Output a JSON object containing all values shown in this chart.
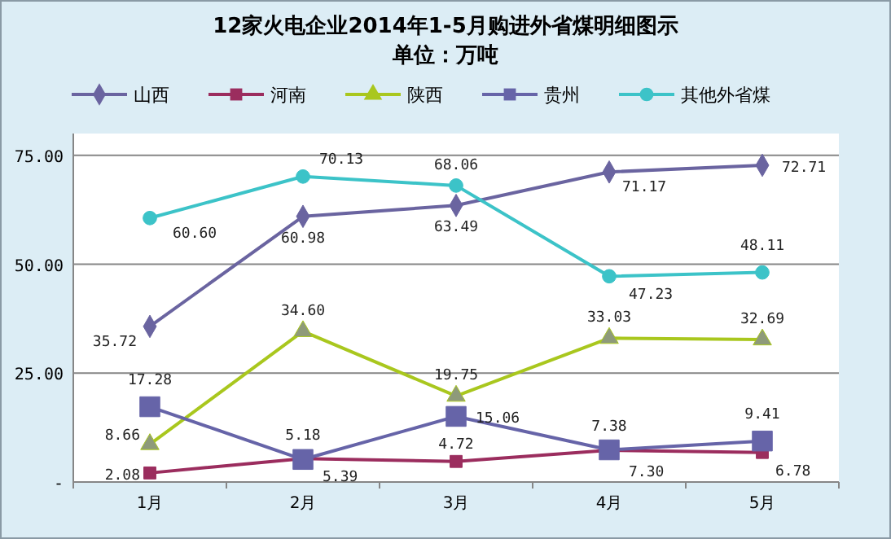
{
  "chart_data": {
    "type": "line",
    "title": "12家火电企业2014年1-5月购进外省煤明细图示",
    "subtitle": "单位：万吨",
    "categories": [
      "1月",
      "2月",
      "3月",
      "4月",
      "5月"
    ],
    "series": [
      {
        "name": "山西",
        "color": "#6a64a0",
        "marker": "diamond",
        "values": [
          35.72,
          60.98,
          63.49,
          71.17,
          72.71
        ],
        "value_labels": [
          "35.72",
          "60.98",
          "63.49",
          "71.17",
          "72.71"
        ]
      },
      {
        "name": "河南",
        "color": "#9b2d5e",
        "marker": "square",
        "values": [
          2.08,
          5.39,
          4.72,
          7.3,
          6.78
        ],
        "value_labels": [
          "2.08",
          "5.39",
          "4.72",
          "7.30",
          "6.78"
        ]
      },
      {
        "name": "陕西",
        "color": "#a9c71e",
        "marker": "triangle",
        "values": [
          8.66,
          34.6,
          19.75,
          33.03,
          32.69
        ],
        "value_labels": [
          "8.66",
          "34.60",
          "19.75",
          "33.03",
          "32.69"
        ]
      },
      {
        "name": "贵州",
        "color": "#6664a8",
        "marker": "square",
        "values": [
          17.28,
          5.18,
          15.06,
          7.38,
          9.41
        ],
        "value_labels": [
          "17.28",
          "5.18",
          "15.06",
          "7.38",
          "9.41"
        ]
      },
      {
        "name": "其他外省煤",
        "color": "#3cc3c8",
        "marker": "circle",
        "values": [
          60.6,
          70.13,
          68.06,
          47.23,
          48.11
        ],
        "value_labels": [
          "60.60",
          "70.13",
          "68.06",
          "47.23",
          "48.11"
        ]
      }
    ],
    "ylim": [
      0,
      80
    ],
    "yticks": [
      {
        "value": 0,
        "label": "-"
      },
      {
        "value": 25,
        "label": "25.00"
      },
      {
        "value": 50,
        "label": "50.00"
      },
      {
        "value": 75,
        "label": "75.00"
      }
    ],
    "grid": "y",
    "legend": "top"
  }
}
